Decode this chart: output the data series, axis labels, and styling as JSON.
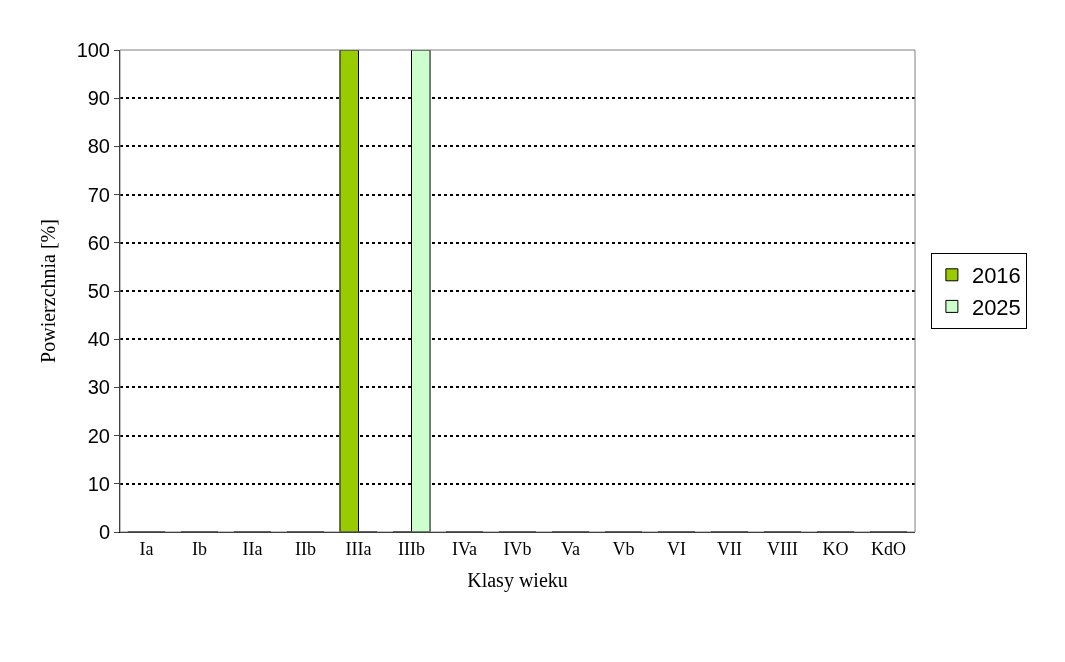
{
  "chart_data": {
    "type": "bar",
    "xlabel": "Klasy wieku",
    "ylabel": "Powierzchnia [%]",
    "categories": [
      "Ia",
      "Ib",
      "IIa",
      "IIb",
      "IIIa",
      "IIIb",
      "IVa",
      "IVb",
      "Va",
      "Vb",
      "VI",
      "VII",
      "VIII",
      "KO",
      "KdO"
    ],
    "series": [
      {
        "name": "2016",
        "color": "#99cc00",
        "values": [
          0,
          0,
          0,
          0,
          100,
          0,
          0,
          0,
          0,
          0,
          0,
          0,
          0,
          0,
          0
        ]
      },
      {
        "name": "2025",
        "color": "#ccffcc",
        "values": [
          0,
          0,
          0,
          0,
          0,
          100,
          0,
          0,
          0,
          0,
          0,
          0,
          0,
          0,
          0
        ]
      }
    ],
    "ylim": [
      0,
      100
    ],
    "yticks": [
      0,
      10,
      20,
      30,
      40,
      50,
      60,
      70,
      80,
      90,
      100
    ],
    "grid": "y",
    "legend": "right"
  }
}
